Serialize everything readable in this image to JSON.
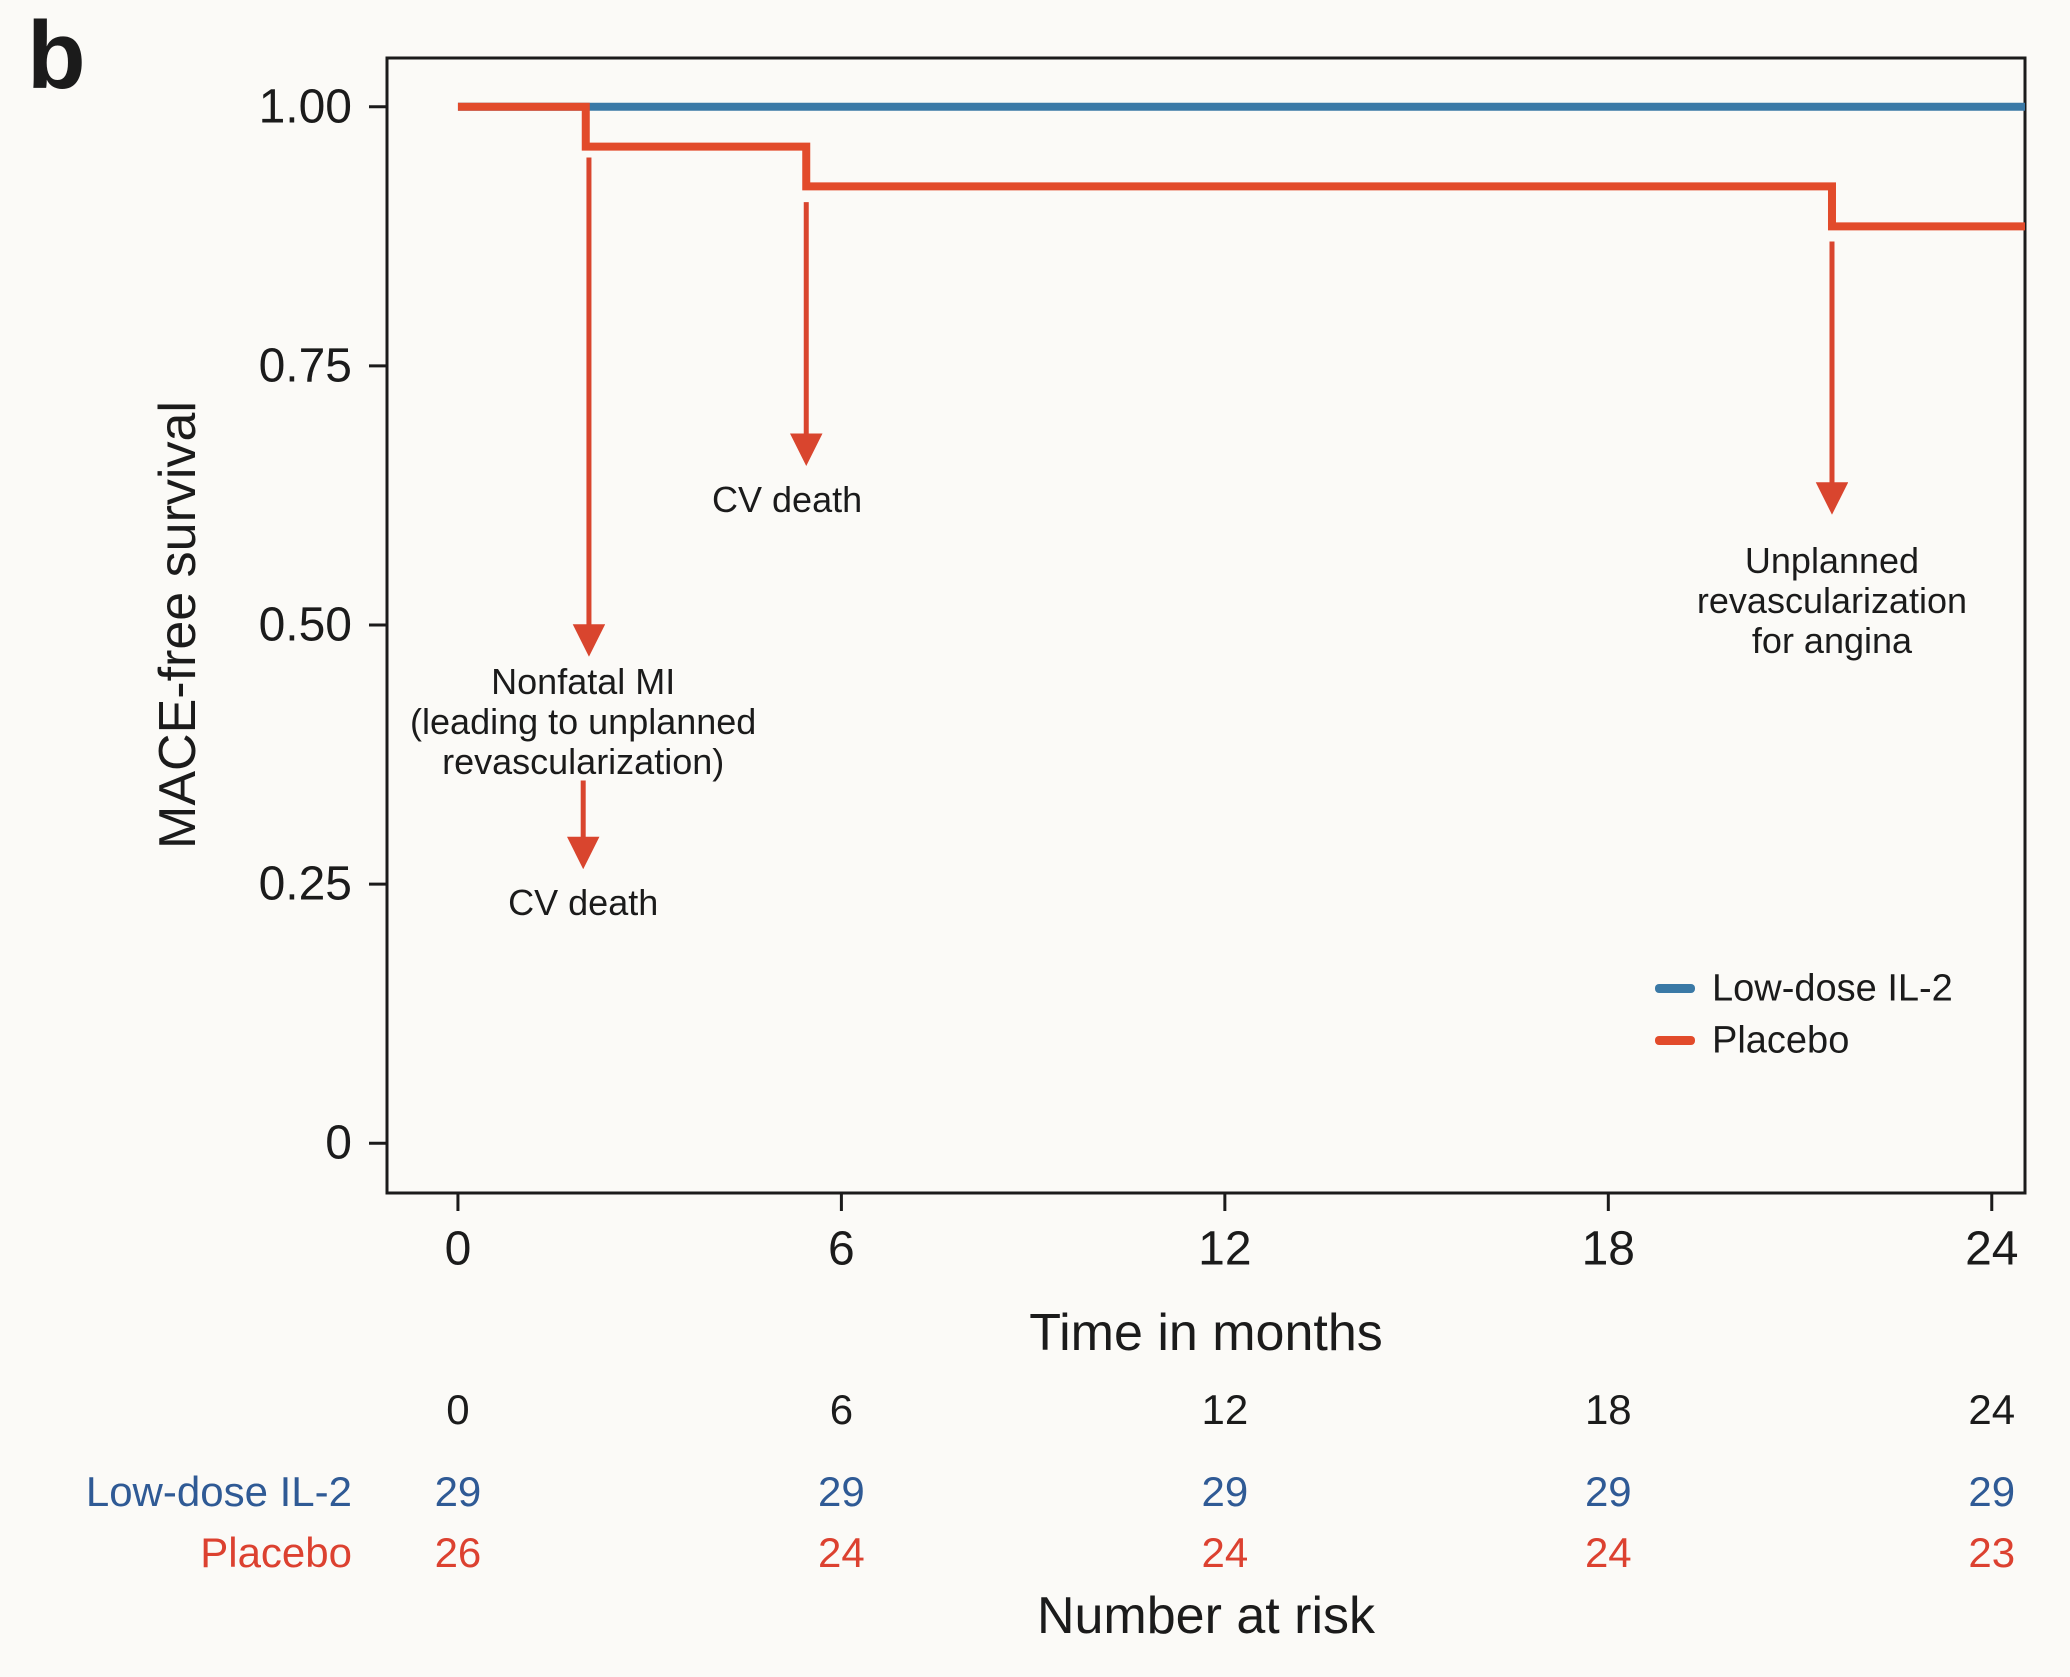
{
  "panel_label": "b",
  "colors": {
    "axis": "#1b1b1b",
    "blue": "#3a79a6",
    "red": "#e24b2b",
    "arrow_red": "#d9452e",
    "table_blue": "#2f5a95",
    "table_red": "#dc4130",
    "background": "#fbfaf7"
  },
  "chart_data": {
    "type": "line",
    "subtype": "kaplan-meier-step",
    "xlabel": "Time in months",
    "ylabel": "MACE-free survival",
    "x_ticks": [
      0,
      6,
      12,
      18,
      24
    ],
    "y_ticks": [
      {
        "v": 1.0,
        "label": "1.00"
      },
      {
        "v": 0.75,
        "label": "0.75"
      },
      {
        "v": 0.5,
        "label": "0.50"
      },
      {
        "v": 0.25,
        "label": "0.25"
      },
      {
        "v": 0.0,
        "label": "0"
      }
    ],
    "x_domain": [
      -1.11,
      24.52
    ],
    "y_domain": [
      -0.048,
      1.047
    ],
    "grid": false,
    "legend_position": "inside-lower-right",
    "series": [
      {
        "name": "Low-dose IL-2",
        "color_key": "blue",
        "points": [
          [
            0,
            1.0
          ],
          [
            24.52,
            1.0
          ]
        ]
      },
      {
        "name": "Placebo",
        "color_key": "red",
        "points": [
          [
            0,
            1.0
          ],
          [
            2.0,
            1.0
          ],
          [
            2.0,
            0.9615
          ],
          [
            5.45,
            0.9615
          ],
          [
            5.45,
            0.9231
          ],
          [
            21.5,
            0.9231
          ],
          [
            21.5,
            0.8846
          ],
          [
            24.52,
            0.8846
          ]
        ]
      }
    ],
    "annotations": {
      "arrows": [
        {
          "x": 2.05,
          "y1": 0.951,
          "y2": 0.466
        },
        {
          "x": 1.96,
          "y1": 0.35,
          "y2": 0.261
        },
        {
          "x": 5.45,
          "y1": 0.908,
          "y2": 0.65
        },
        {
          "x": 21.5,
          "y1": 0.87,
          "y2": 0.603
        }
      ],
      "labels": [
        {
          "x": 1.96,
          "y": 0.406,
          "lines": [
            "Nonfatal MI",
            "(leading to unplanned",
            "revascularization)"
          ]
        },
        {
          "x": 1.96,
          "y": 0.232,
          "lines": [
            "CV death"
          ]
        },
        {
          "x": 5.15,
          "y": 0.621,
          "lines": [
            "CV death"
          ]
        },
        {
          "x": 21.5,
          "y": 0.523,
          "lines": [
            "Unplanned",
            "revascularization",
            "for angina"
          ]
        }
      ]
    },
    "legend": {
      "items": [
        {
          "label": "Low-dose IL-2",
          "color_key": "blue"
        },
        {
          "label": "Placebo",
          "color_key": "red"
        }
      ]
    }
  },
  "risk_table": {
    "title": "Number at risk",
    "time_points": [
      0,
      6,
      12,
      18,
      24
    ],
    "rows": [
      {
        "label": "Low-dose IL-2",
        "color_key": "table_blue",
        "values": [
          "29",
          "29",
          "29",
          "29",
          "29"
        ]
      },
      {
        "label": "Placebo",
        "color_key": "table_red",
        "values": [
          "26",
          "24",
          "24",
          "24",
          "23"
        ]
      }
    ]
  }
}
